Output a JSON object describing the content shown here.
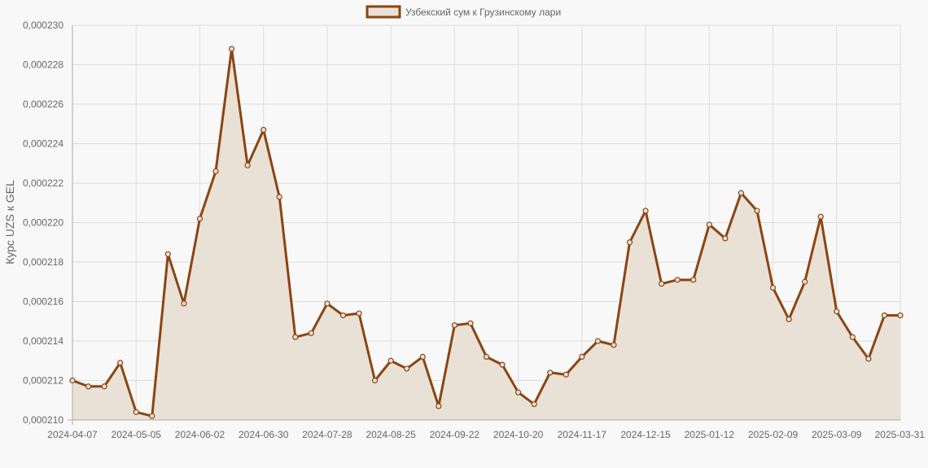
{
  "chart_data": {
    "type": "line",
    "fill": "area",
    "title": "",
    "xlabel": "",
    "ylabel": "Курс UZS к GEL",
    "legend": {
      "position": "top-center",
      "entries": [
        "Узбекский сум к Грузинскому лари"
      ]
    },
    "grid": true,
    "ylim": [
      0.00021,
      0.00023
    ],
    "y_ticks": [
      "0,000210",
      "0,000212",
      "0,000214",
      "0,000216",
      "0,000218",
      "0,000220",
      "0,000222",
      "0,000224",
      "0,000226",
      "0,000228",
      "0,000230"
    ],
    "x_ticks": [
      "2024-04-07",
      "2024-05-05",
      "2024-06-02",
      "2024-06-30",
      "2024-07-28",
      "2024-08-25",
      "2024-09-22",
      "2024-10-20",
      "2024-11-17",
      "2024-12-15",
      "2025-01-12",
      "2025-02-09",
      "2025-03-09",
      "2025-03-31"
    ],
    "colors": {
      "line": "#8b4513",
      "fill": "#e9e1d6",
      "grid": "#dddddd",
      "axis": "#aaaaaa",
      "text": "#666666"
    },
    "series": [
      {
        "name": "Узбекский сум к Грузинскому лари",
        "values": [
          0.000212,
          0.0002117,
          0.0002117,
          0.0002129,
          0.0002104,
          0.0002102,
          0.0002184,
          0.0002159,
          0.0002202,
          0.0002226,
          0.0002288,
          0.0002229,
          0.0002247,
          0.0002213,
          0.0002142,
          0.0002144,
          0.0002159,
          0.0002153,
          0.0002154,
          0.000212,
          0.000213,
          0.0002126,
          0.0002132,
          0.0002107,
          0.0002148,
          0.0002149,
          0.0002132,
          0.0002128,
          0.0002114,
          0.0002108,
          0.0002124,
          0.0002123,
          0.0002132,
          0.000214,
          0.0002138,
          0.000219,
          0.0002206,
          0.0002169,
          0.0002171,
          0.0002171,
          0.0002199,
          0.0002192,
          0.0002215,
          0.0002206,
          0.0002167,
          0.0002151,
          0.000217,
          0.0002203,
          0.0002155,
          0.0002142,
          0.0002131,
          0.0002153,
          0.0002153
        ]
      }
    ]
  }
}
